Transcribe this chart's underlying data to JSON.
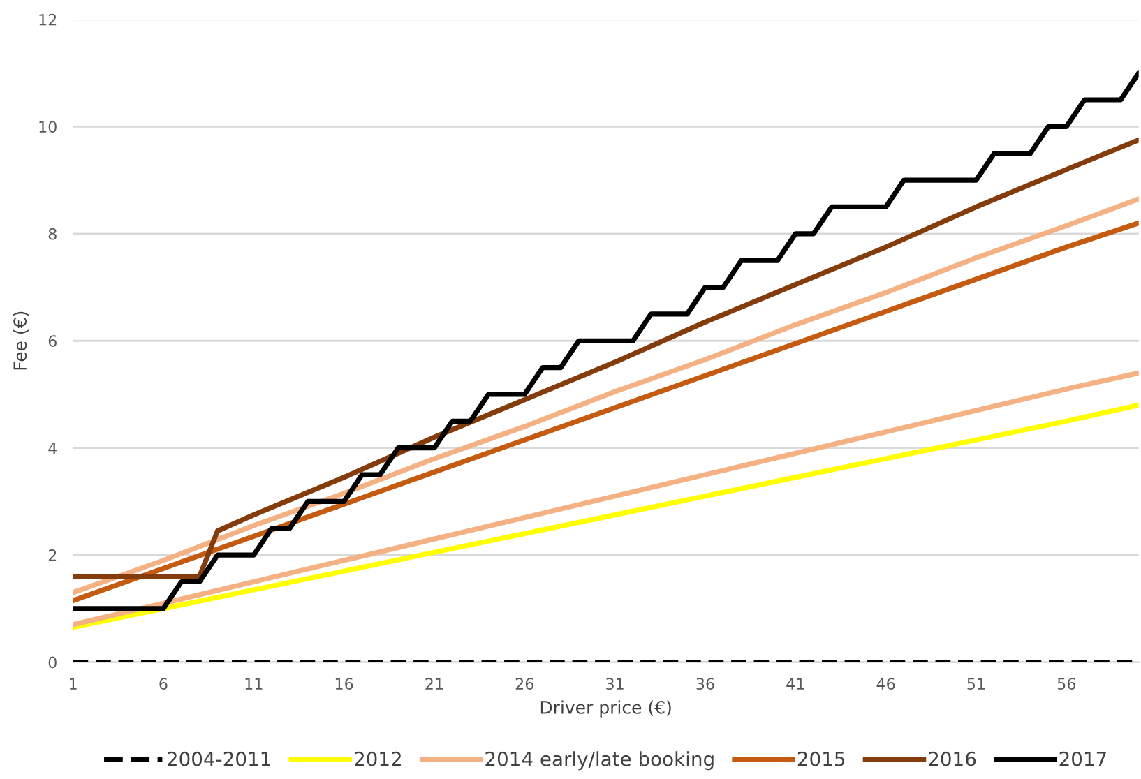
{
  "chart_data": {
    "type": "line",
    "xlabel": "Driver price (€)",
    "ylabel": "Fee (€)",
    "xlim": [
      1,
      60
    ],
    "xticks": [
      1,
      6,
      11,
      16,
      21,
      26,
      31,
      36,
      41,
      46,
      51,
      56
    ],
    "ylim": [
      0,
      12
    ],
    "yticks": [
      0,
      2,
      4,
      6,
      8,
      10,
      12
    ],
    "grid": "y",
    "legend": "bottom",
    "marker": "none",
    "series": [
      {
        "name": "2004-2011",
        "color": "#000000",
        "line_style": "dashed",
        "x": [
          1,
          60
        ],
        "values": [
          0,
          0
        ]
      },
      {
        "name": "2012",
        "color": "#ffff00",
        "x": [
          1,
          6,
          11,
          16,
          21,
          26,
          31,
          36,
          41,
          46,
          51,
          56,
          60
        ],
        "values": [
          0.65,
          1.0,
          1.35,
          1.7,
          2.05,
          2.4,
          2.75,
          3.1,
          3.45,
          3.8,
          4.15,
          4.5,
          4.8
        ]
      },
      {
        "name": "2014 early/late booking",
        "color": "#f4b183",
        "x": [
          1,
          6,
          11,
          16,
          21,
          26,
          31,
          36,
          41,
          46,
          51,
          56,
          60
        ],
        "values": [
          1.3,
          1.9,
          2.55,
          3.15,
          3.8,
          4.4,
          5.05,
          5.65,
          6.3,
          6.9,
          7.55,
          8.15,
          8.65
        ]
      },
      {
        "color": "#f4b183",
        "x": [
          1,
          6,
          11,
          16,
          21,
          26,
          31,
          36,
          41,
          46,
          51,
          56,
          60
        ],
        "values": [
          0.7,
          1.1,
          1.5,
          1.9,
          2.3,
          2.7,
          3.1,
          3.5,
          3.9,
          4.3,
          4.7,
          5.1,
          5.4
        ]
      },
      {
        "name": "2015",
        "color": "#c55a11",
        "x": [
          1,
          6,
          11,
          16,
          21,
          26,
          31,
          36,
          41,
          46,
          51,
          56,
          60
        ],
        "values": [
          1.15,
          1.75,
          2.35,
          2.95,
          3.55,
          4.15,
          4.75,
          5.35,
          5.95,
          6.55,
          7.15,
          7.75,
          8.2
        ]
      },
      {
        "name": "2016",
        "color": "#843c0c",
        "x": [
          1,
          8,
          9,
          11,
          16,
          21,
          26,
          31,
          36,
          41,
          46,
          51,
          56,
          60
        ],
        "values": [
          1.6,
          1.6,
          2.45,
          2.75,
          3.45,
          4.2,
          4.9,
          5.6,
          6.35,
          7.05,
          7.75,
          8.5,
          9.2,
          9.75
        ]
      },
      {
        "name": "2017",
        "color": "#000000",
        "x": [
          1,
          6,
          7,
          8,
          9,
          11,
          12,
          13,
          14,
          16,
          17,
          18,
          19,
          21,
          22,
          23,
          24,
          26,
          27,
          28,
          29,
          32,
          33,
          35,
          36,
          37,
          38,
          40,
          41,
          42,
          43,
          46,
          47,
          51,
          52,
          54,
          55,
          56,
          57,
          59,
          60
        ],
        "values": [
          1.0,
          1.0,
          1.5,
          1.5,
          2.0,
          2.0,
          2.5,
          2.5,
          3.0,
          3.0,
          3.5,
          3.5,
          4.0,
          4.0,
          4.5,
          4.5,
          5.0,
          5.0,
          5.5,
          5.5,
          6.0,
          6.0,
          6.5,
          6.5,
          7.0,
          7.0,
          7.5,
          7.5,
          8.0,
          8.0,
          8.5,
          8.5,
          9.0,
          9.0,
          9.5,
          9.5,
          10.0,
          10.0,
          10.5,
          10.5,
          11.0
        ]
      }
    ]
  }
}
